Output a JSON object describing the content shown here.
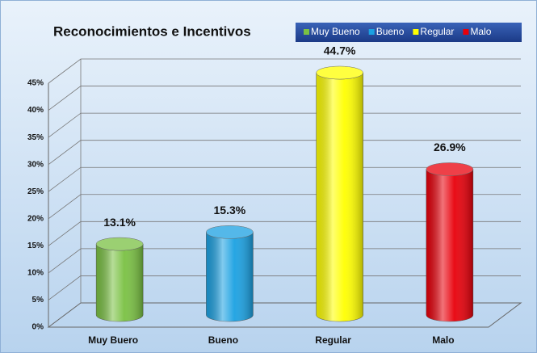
{
  "chart_data": {
    "type": "cylinder",
    "title": "Reconocimientos e Incentivos",
    "categories": [
      "Muy Buero",
      "Bueno",
      "Regular",
      "Malo"
    ],
    "values": [
      13.1,
      15.3,
      44.7,
      26.9
    ],
    "value_labels": [
      "13.1%",
      "15.3%",
      "44.7%",
      "26.9%"
    ],
    "colors": [
      "#7ac143",
      "#1ba1e2",
      "#ffff00",
      "#e8000b"
    ],
    "legend": [
      "Muy Bueno",
      "Bueno",
      "Regular",
      "Malo"
    ],
    "ylim": [
      0,
      45
    ],
    "yticks": [
      {
        "value": 0,
        "label": "0%"
      },
      {
        "value": 5,
        "label": "5%"
      },
      {
        "value": 10,
        "label": "10%"
      },
      {
        "value": 15,
        "label": "15%"
      },
      {
        "value": 20,
        "label": "20%"
      },
      {
        "value": 25,
        "label": "25%"
      },
      {
        "value": 30,
        "label": "30%"
      },
      {
        "value": 35,
        "label": "35%"
      },
      {
        "value": 40,
        "label": "40%"
      },
      {
        "value": 45,
        "label": "45%"
      }
    ],
    "grid": true
  }
}
